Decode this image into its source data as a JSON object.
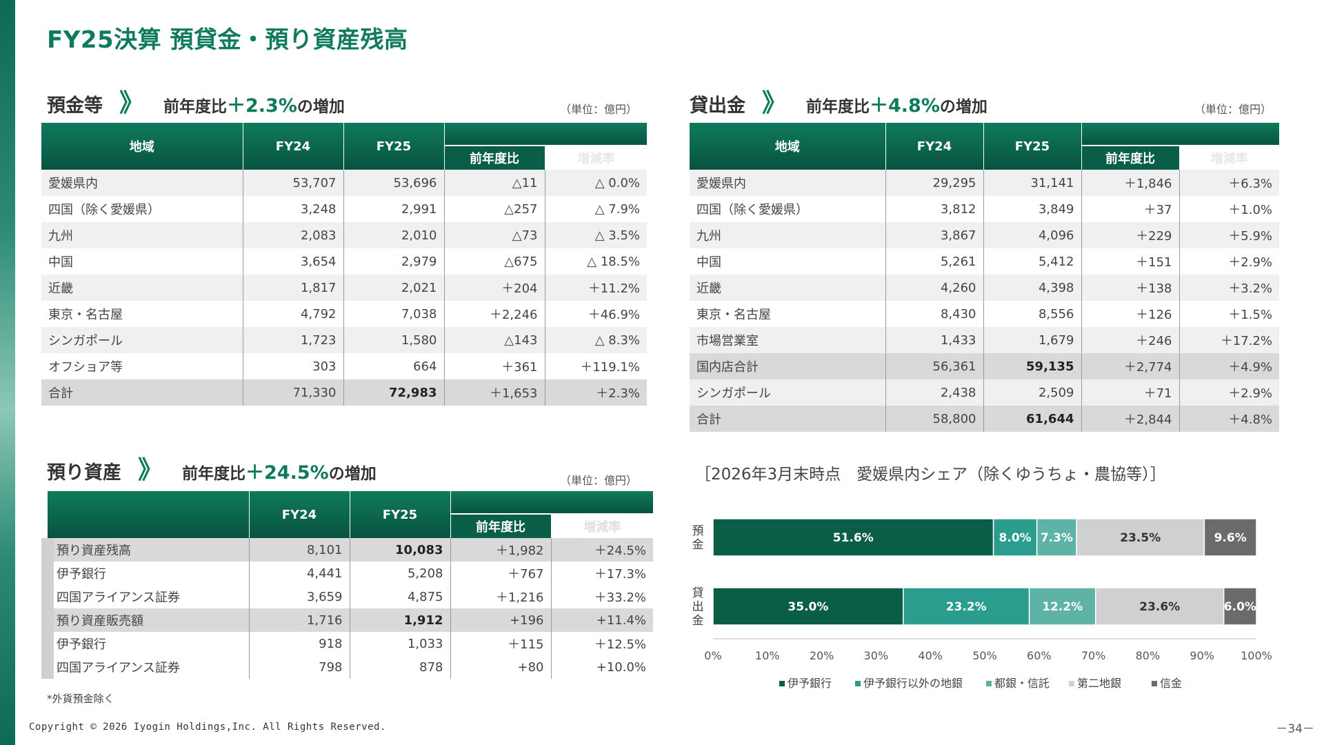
{
  "title": "FY25決算 預貸金・預り資産残高",
  "deposits": {
    "name": "預金等",
    "chevron": "》",
    "sub_prefix": "前年度比",
    "sub_value": "＋2.3%",
    "sub_suffix": "の増加",
    "unit": "（単位：億円）",
    "headers": {
      "region": "地域",
      "fy24": "FY24",
      "fy25": "FY25",
      "yoy": "前年度比",
      "rate": "増減率"
    },
    "rows": [
      [
        "愛媛県内",
        "53,707",
        "53,696",
        "△11",
        "△ 0.0%"
      ],
      [
        "四国（除く愛媛県）",
        "3,248",
        "2,991",
        "△257",
        "△ 7.9%"
      ],
      [
        "九州",
        "2,083",
        "2,010",
        "△73",
        "△ 3.5%"
      ],
      [
        "中国",
        "3,654",
        "2,979",
        "△675",
        "△ 18.5%"
      ],
      [
        "近畿",
        "1,817",
        "2,021",
        "＋204",
        "＋11.2%"
      ],
      [
        "東京・名古屋",
        "4,792",
        "7,038",
        "＋2,246",
        "＋46.9%"
      ],
      [
        "シンガポール",
        "1,723",
        "1,580",
        "△143",
        "△ 8.3%"
      ],
      [
        "オフショア等",
        "303",
        "664",
        "＋361",
        "＋119.1%"
      ],
      [
        "合計",
        "71,330",
        "72,983",
        "＋1,653",
        "＋2.3%"
      ]
    ]
  },
  "loans": {
    "name": "貸出金",
    "chevron": "》",
    "sub_prefix": "前年度比",
    "sub_value": "＋4.8%",
    "sub_suffix": "の増加",
    "unit": "（単位：億円）",
    "headers": {
      "region": "地域",
      "fy24": "FY24",
      "fy25": "FY25",
      "yoy": "前年度比",
      "rate": "増減率"
    },
    "rows": [
      [
        "愛媛県内",
        "29,295",
        "31,141",
        "＋1,846",
        "＋6.3%"
      ],
      [
        "四国（除く愛媛県）",
        "3,812",
        "3,849",
        "＋37",
        "＋1.0%"
      ],
      [
        "九州",
        "3,867",
        "4,096",
        "＋229",
        "＋5.9%"
      ],
      [
        "中国",
        "5,261",
        "5,412",
        "＋151",
        "＋2.9%"
      ],
      [
        "近畿",
        "4,260",
        "4,398",
        "＋138",
        "＋3.2%"
      ],
      [
        "東京・名古屋",
        "8,430",
        "8,556",
        "＋126",
        "＋1.5%"
      ],
      [
        "市場営業室",
        "1,433",
        "1,679",
        "＋246",
        "＋17.2%"
      ],
      [
        "国内店合計",
        "56,361",
        "59,135",
        "＋2,774",
        "＋4.9%"
      ],
      [
        "シンガポール",
        "2,438",
        "2,509",
        "＋71",
        "＋2.9%"
      ],
      [
        "合計",
        "58,800",
        "61,644",
        "＋2,844",
        "＋4.8%"
      ]
    ]
  },
  "assets": {
    "name": "預り資産",
    "chevron": "》",
    "sub_prefix": "前年度比",
    "sub_value": "＋24.5%",
    "sub_suffix": "の増加",
    "unit": "（単位：億円）",
    "headers": {
      "region": "",
      "fy24": "FY24",
      "fy25": "FY25",
      "yoy": "前年度比",
      "rate": "増減率"
    },
    "rows": [
      [
        "預り資産残高",
        "8,101",
        "10,083",
        "＋1,982",
        "＋24.5%"
      ],
      [
        "伊予銀行",
        "4,441",
        "5,208",
        "＋767",
        "＋17.3%"
      ],
      [
        "四国アライアンス証券",
        "3,659",
        "4,875",
        "＋1,216",
        "＋33.2%"
      ],
      [
        "預り資産販売額",
        "1,716",
        "1,912",
        "+196",
        "+11.4%"
      ],
      [
        "伊予銀行",
        "918",
        "1,033",
        "＋115",
        "＋12.5%"
      ],
      [
        "四国アライアンス証券",
        "798",
        "878",
        "+80",
        "+10.0%"
      ]
    ]
  },
  "note": "*外貨預金除く",
  "copyright": "Copyright © 2026 Iyogin Holdings,Inc. All Rights Reserved.",
  "page_number": "－34－",
  "chart_data": {
    "type": "bar",
    "orientation": "horizontal-stacked-100",
    "title": "［2026年3月末時点　愛媛県内シェア（除くゆうちょ・農協等）］",
    "categories": [
      "預金",
      "貸出金"
    ],
    "series": [
      {
        "name": "伊予銀行",
        "values": [
          51.6,
          35.0
        ],
        "color": "#0a5d47"
      },
      {
        "name": "伊予銀行以外の地銀",
        "values": [
          8.0,
          23.2
        ],
        "color": "#2a9d8f"
      },
      {
        "name": "都銀・信託",
        "values": [
          7.3,
          12.2
        ],
        "color": "#5fb3a6"
      },
      {
        "name": "第二地銀",
        "values": [
          23.5,
          23.6
        ],
        "color": "#d0d0d0"
      },
      {
        "name": "信金",
        "values": [
          9.6,
          6.0
        ],
        "color": "#6b6b6b"
      }
    ],
    "xlim": [
      0,
      100
    ],
    "xticks": [
      "0%",
      "10%",
      "20%",
      "30%",
      "40%",
      "50%",
      "60%",
      "70%",
      "80%",
      "90%",
      "100%"
    ],
    "legend": "bottom"
  }
}
